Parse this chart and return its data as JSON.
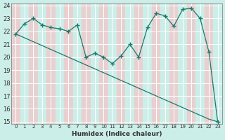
{
  "title": "",
  "xlabel": "Humidex (Indice chaleur)",
  "ylabel": "",
  "bg_color": "#cceee8",
  "cell_color_odd": "#e8d0d0",
  "cell_color_even": "#cceee8",
  "grid_color": "#aadddd",
  "line_color": "#1a7a6e",
  "x_data": [
    0,
    1,
    2,
    3,
    4,
    5,
    6,
    7,
    8,
    9,
    10,
    11,
    12,
    13,
    14,
    15,
    16,
    17,
    18,
    19,
    20,
    21,
    22,
    23
  ],
  "y_zigzag": [
    21.8,
    22.6,
    23.0,
    22.5,
    22.3,
    22.2,
    22.0,
    22.5,
    20.0,
    20.3,
    20.0,
    19.5,
    20.1,
    21.0,
    20.0,
    22.3,
    23.4,
    23.2,
    22.4,
    23.7,
    23.8,
    23.0,
    20.4,
    15.0
  ],
  "y_straight": [
    21.8,
    21.5,
    21.2,
    20.9,
    20.6,
    20.3,
    20.0,
    19.7,
    19.4,
    19.1,
    18.8,
    18.5,
    18.2,
    17.9,
    17.6,
    17.3,
    17.0,
    16.7,
    16.4,
    16.1,
    15.8,
    15.5,
    15.2,
    15.0
  ],
  "ylim": [
    15,
    24
  ],
  "xlim": [
    0,
    23
  ],
  "yticks": [
    15,
    16,
    17,
    18,
    19,
    20,
    21,
    22,
    23,
    24
  ],
  "xticks": [
    0,
    1,
    2,
    3,
    4,
    5,
    6,
    7,
    8,
    9,
    10,
    11,
    12,
    13,
    14,
    15,
    16,
    17,
    18,
    19,
    20,
    21,
    22,
    23
  ]
}
